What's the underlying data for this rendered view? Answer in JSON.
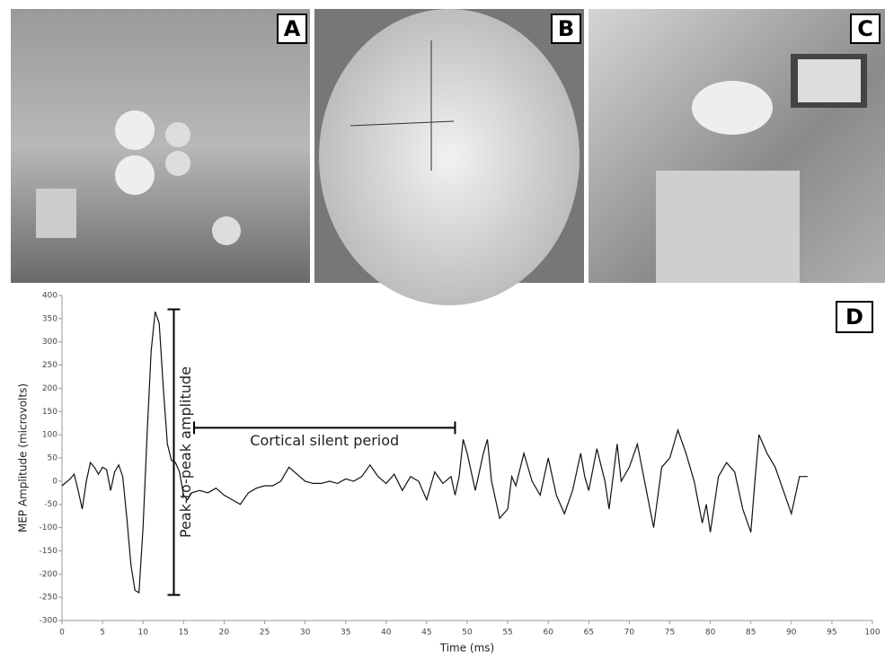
{
  "panels": [
    {
      "label": "A"
    },
    {
      "label": "B"
    },
    {
      "label": "C"
    }
  ],
  "chart_data": {
    "type": "line",
    "panel_label": "D",
    "x_label": "Time (ms)",
    "y_label": "MEP Amplitude (microvolts)",
    "color": "#111111",
    "x": [
      0,
      1,
      1.5,
      2,
      2.5,
      3,
      3.5,
      4,
      4.5,
      5,
      5.5,
      6,
      6.5,
      7,
      7.5,
      8,
      8.5,
      9,
      9.5,
      10,
      10.5,
      11,
      11.5,
      12,
      12.5,
      13,
      13.5,
      14,
      14.5,
      15,
      15.5,
      16,
      17,
      18,
      19,
      20,
      21,
      22,
      23,
      24,
      25,
      26,
      27,
      28,
      29,
      30,
      31,
      32,
      33,
      34,
      35,
      36,
      37,
      38,
      39,
      40,
      41,
      42,
      43,
      44,
      45,
      46,
      47,
      48,
      48.5,
      49,
      49.5,
      50,
      51,
      52,
      52.5,
      53,
      54,
      55,
      55.5,
      56,
      57,
      58,
      59,
      60,
      61,
      62,
      63,
      64,
      64.5,
      65,
      66,
      67,
      67.5,
      68,
      68.5,
      69,
      70,
      71,
      72,
      73,
      74,
      75,
      76,
      77,
      78,
      79,
      79.5,
      80,
      81,
      82,
      83,
      84,
      85,
      85.5,
      86,
      87,
      88,
      89,
      90,
      91,
      92
    ],
    "values": [
      -10,
      5,
      15,
      -20,
      -60,
      0,
      40,
      30,
      15,
      30,
      25,
      -20,
      20,
      35,
      10,
      -80,
      -180,
      -235,
      -240,
      -100,
      100,
      280,
      365,
      340,
      200,
      80,
      45,
      40,
      20,
      -30,
      -40,
      -25,
      -20,
      -25,
      -15,
      -30,
      -40,
      -50,
      -25,
      -15,
      -10,
      -10,
      0,
      30,
      15,
      0,
      -5,
      -5,
      0,
      -5,
      5,
      0,
      10,
      35,
      10,
      -5,
      15,
      -20,
      10,
      0,
      -40,
      20,
      -5,
      10,
      -30,
      10,
      90,
      60,
      -20,
      60,
      90,
      0,
      -80,
      -60,
      10,
      -10,
      60,
      0,
      -30,
      50,
      -30,
      -70,
      -20,
      60,
      10,
      -20,
      70,
      0,
      -60,
      10,
      80,
      0,
      30,
      80,
      -10,
      -100,
      30,
      50,
      110,
      60,
      0,
      -90,
      -50,
      -110,
      10,
      40,
      20,
      -60,
      -110,
      0,
      100,
      60,
      30,
      -20,
      -70,
      10,
      10
    ],
    "xlim": [
      0,
      100
    ],
    "ylim": [
      -300,
      400
    ],
    "xticks": [
      0,
      5,
      10,
      15,
      20,
      25,
      30,
      35,
      40,
      45,
      50,
      55,
      60,
      65,
      70,
      75,
      80,
      85,
      90,
      95,
      100
    ],
    "yticks": [
      -300,
      -250,
      -200,
      -150,
      -100,
      -50,
      0,
      50,
      100,
      150,
      200,
      250,
      300,
      350,
      400
    ],
    "annotations": [
      {
        "text": "Peak-to-peak amplitude",
        "x": 13.8,
        "y": [
          -245,
          370
        ]
      },
      {
        "text": "Cortical silent period",
        "x": [
          16.3,
          48.5
        ],
        "y": 115
      }
    ]
  }
}
